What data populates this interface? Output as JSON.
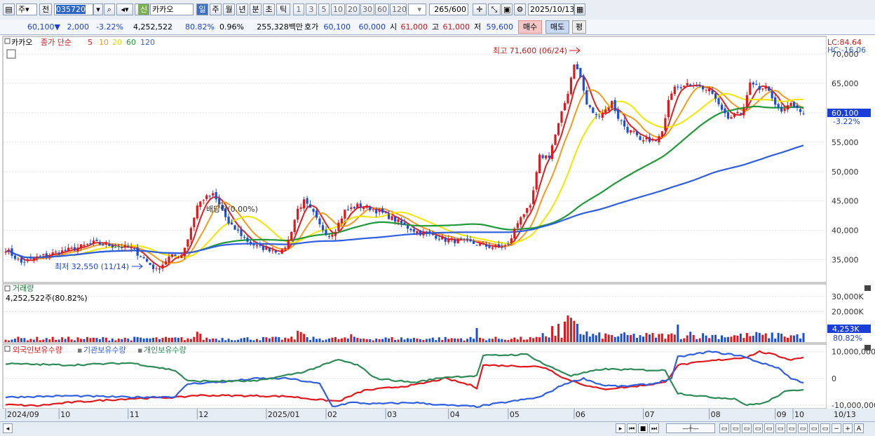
{
  "toolbar": {
    "period_mode": "주",
    "prev_label": "전",
    "code": "035720",
    "name_badge": "신",
    "stock_name": "카카오",
    "periods": [
      "일",
      "주",
      "월",
      "년",
      "분",
      "초",
      "틱"
    ],
    "active_period": "일",
    "intervals": [
      "1",
      "3",
      "5",
      "10",
      "20",
      "30",
      "60",
      "120"
    ],
    "count": "265",
    "count_total": "/600",
    "date": "2025/10/13"
  },
  "quote": {
    "price": "60,100",
    "arrow": "▼",
    "change": "2,000",
    "change_pct": "-3.22%",
    "volume": "4,252,522",
    "turnover_pct": "80.82%",
    "extra_pct": "0.96%",
    "amount": "255,328백만",
    "hoga_label": "호가",
    "ask": "60,100",
    "bid": "60,000",
    "open_label": "시",
    "open": "61,000",
    "high_label": "고",
    "high": "61,000",
    "low_label": "저",
    "low": "59,600",
    "buy_label": "매수",
    "sell_label": "매도",
    "eval_label": "평"
  },
  "legend": {
    "name": "카카오",
    "series_label": "종가 단순",
    "ma": [
      {
        "period": "5",
        "color": "#e02020"
      },
      {
        "period": "10",
        "color": "#f39a1e"
      },
      {
        "period": "20",
        "color": "#f2e600"
      },
      {
        "period": "60",
        "color": "#1f9a3a"
      },
      {
        "period": "120",
        "color": "#2f5fe0"
      }
    ],
    "lc_label": "LC:84.64",
    "hc_label": "HC:-16.06",
    "ex_label": "배당락(0.00%)"
  },
  "chart_data": [
    {
      "type": "candlestick",
      "title": "카카오",
      "x_ticks": [
        "2024/09",
        "10",
        "11",
        "12",
        "2025/01",
        "02",
        "03",
        "04",
        "05",
        "06",
        "07",
        "08",
        "09",
        "10",
        "10/13"
      ],
      "y_ticks": [
        "70,000",
        "65,000",
        "60,000",
        "55,000",
        "50,000",
        "45,000",
        "40,000",
        "35,000"
      ],
      "ylim": [
        31500,
        72500
      ],
      "current_price": "60,100",
      "current_change": "-3.22%",
      "annotations": [
        {
          "label": "최고 71,600 (06/24)",
          "value": 71600
        },
        {
          "label": "최저 32,550 (11/14)",
          "value": 32550
        }
      ],
      "close_anchors": [
        [
          0,
          36800
        ],
        [
          5,
          34500
        ],
        [
          10,
          35400
        ],
        [
          16,
          36200
        ],
        [
          22,
          36900
        ],
        [
          28,
          37900
        ],
        [
          34,
          37400
        ],
        [
          40,
          37000
        ],
        [
          44,
          35200
        ],
        [
          48,
          33200
        ],
        [
          52,
          35400
        ],
        [
          56,
          35900
        ],
        [
          58,
          38600
        ],
        [
          61,
          44200
        ],
        [
          63,
          45400
        ],
        [
          66,
          46000
        ],
        [
          69,
          43500
        ],
        [
          71,
          41000
        ],
        [
          74,
          39800
        ],
        [
          77,
          38200
        ],
        [
          80,
          37200
        ],
        [
          84,
          36800
        ],
        [
          88,
          36300
        ],
        [
          90,
          38300
        ],
        [
          93,
          43600
        ],
        [
          95,
          44900
        ],
        [
          98,
          42800
        ],
        [
          100,
          40800
        ],
        [
          103,
          39100
        ],
        [
          105,
          40200
        ],
        [
          108,
          43300
        ],
        [
          112,
          44200
        ],
        [
          116,
          43800
        ],
        [
          120,
          42900
        ],
        [
          124,
          41800
        ],
        [
          128,
          40500
        ],
        [
          132,
          39600
        ],
        [
          136,
          39200
        ],
        [
          140,
          38400
        ],
        [
          144,
          38200
        ],
        [
          148,
          37900
        ],
        [
          152,
          37400
        ],
        [
          156,
          37100
        ],
        [
          160,
          37500
        ],
        [
          162,
          40100
        ],
        [
          164,
          42500
        ],
        [
          167,
          43800
        ],
        [
          170,
          52500
        ],
        [
          173,
          52700
        ],
        [
          176,
          58000
        ],
        [
          179,
          63500
        ],
        [
          181,
          68500
        ],
        [
          183,
          66000
        ],
        [
          185,
          61400
        ],
        [
          188,
          59400
        ],
        [
          191,
          60500
        ],
        [
          193,
          61800
        ],
        [
          195,
          59200
        ],
        [
          198,
          57000
        ],
        [
          200,
          56600
        ],
        [
          202,
          55000
        ],
        [
          205,
          55500
        ],
        [
          207,
          55100
        ],
        [
          209,
          56500
        ],
        [
          211,
          62500
        ],
        [
          213,
          64800
        ],
        [
          216,
          64500
        ],
        [
          219,
          65000
        ],
        [
          222,
          64200
        ],
        [
          225,
          63300
        ],
        [
          227,
          61200
        ],
        [
          230,
          59400
        ],
        [
          233,
          59700
        ],
        [
          235,
          60500
        ],
        [
          237,
          65500
        ],
        [
          240,
          64200
        ],
        [
          242,
          64800
        ],
        [
          244,
          62400
        ],
        [
          246,
          60400
        ],
        [
          248,
          60800
        ],
        [
          250,
          62100
        ],
        [
          252,
          60900
        ],
        [
          254,
          60100
        ]
      ],
      "n_candles": 255
    },
    {
      "type": "bar",
      "title": "거래량",
      "value_label": "4,252,522주(80.82%)",
      "y_ticks": [
        "30,000K",
        "20,000K"
      ],
      "ylim": [
        0,
        36000
      ],
      "current": "4,253K",
      "current_pct": "80.82%",
      "spikes": [
        [
          61,
          6800
        ],
        [
          62,
          5500
        ],
        [
          93,
          7500
        ],
        [
          94,
          6600
        ],
        [
          95,
          5400
        ],
        [
          110,
          5200
        ],
        [
          150,
          9200
        ],
        [
          174,
          10500
        ],
        [
          176,
          12000
        ],
        [
          178,
          13500
        ],
        [
          179,
          17500
        ],
        [
          180,
          16000
        ],
        [
          181,
          14000
        ],
        [
          182,
          12000
        ],
        [
          185,
          7000
        ],
        [
          214,
          11500
        ],
        [
          218,
          6800
        ],
        [
          239,
          6600
        ],
        [
          246,
          6000
        ]
      ],
      "baseline": 2100
    },
    {
      "type": "line",
      "title": "외국인보유수량 · 기관보유수량 · 개인보유수량",
      "series": [
        {
          "name": "외국인보유수량",
          "color": "#e0181c"
        },
        {
          "name": "기관보유수량",
          "color": "#2f5fe0"
        },
        {
          "name": "개인보유수량",
          "color": "#2e8b57"
        }
      ],
      "y_ticks": [
        "10,000,000",
        "0",
        "-10,000,000"
      ],
      "ylim": [
        -10500000,
        11500000
      ],
      "foreign_anchors": [
        [
          0,
          -9800000
        ],
        [
          10,
          -10200000
        ],
        [
          20,
          -9000000
        ],
        [
          40,
          -7500000
        ],
        [
          56,
          -7000000
        ],
        [
          60,
          -6300000
        ],
        [
          80,
          -6500000
        ],
        [
          90,
          -6700000
        ],
        [
          100,
          -8000000
        ],
        [
          106,
          -8500000
        ],
        [
          114,
          -4500000
        ],
        [
          130,
          -2500000
        ],
        [
          140,
          0
        ],
        [
          148,
          -2500000
        ],
        [
          150,
          -3500000
        ],
        [
          152,
          5000000
        ],
        [
          168,
          4500000
        ],
        [
          172,
          4000000
        ],
        [
          178,
          0
        ],
        [
          186,
          -3000000
        ],
        [
          190,
          -4000000
        ],
        [
          200,
          -3000000
        ],
        [
          210,
          -1500000
        ],
        [
          214,
          5000000
        ],
        [
          224,
          6500000
        ],
        [
          236,
          8000000
        ],
        [
          240,
          10000000
        ],
        [
          244,
          9000000
        ],
        [
          250,
          7000000
        ],
        [
          254,
          8000000
        ]
      ],
      "inst_anchors": [
        [
          0,
          -7000000
        ],
        [
          20,
          -6500000
        ],
        [
          40,
          -7000000
        ],
        [
          54,
          -6800000
        ],
        [
          58,
          -2000000
        ],
        [
          70,
          -1200000
        ],
        [
          80,
          0
        ],
        [
          90,
          0
        ],
        [
          100,
          -2000000
        ],
        [
          104,
          -10500000
        ],
        [
          110,
          -9000000
        ],
        [
          118,
          -9500000
        ],
        [
          130,
          -9000000
        ],
        [
          140,
          -10000000
        ],
        [
          150,
          -10500000
        ],
        [
          170,
          -7000000
        ],
        [
          178,
          -2000000
        ],
        [
          184,
          0
        ],
        [
          190,
          -2500000
        ],
        [
          196,
          -3000000
        ],
        [
          206,
          -2000000
        ],
        [
          212,
          0
        ],
        [
          214,
          8000000
        ],
        [
          224,
          10000000
        ],
        [
          234,
          8500000
        ],
        [
          240,
          6000000
        ],
        [
          246,
          4000000
        ],
        [
          250,
          0
        ],
        [
          254,
          -1500000
        ]
      ],
      "indiv_anchors": [
        [
          0,
          5500000
        ],
        [
          20,
          5000000
        ],
        [
          40,
          5800000
        ],
        [
          54,
          3000000
        ],
        [
          58,
          -1000000
        ],
        [
          80,
          -1000000
        ],
        [
          95,
          2500000
        ],
        [
          106,
          7000000
        ],
        [
          112,
          5000000
        ],
        [
          118,
          0
        ],
        [
          130,
          -1500000
        ],
        [
          140,
          500000
        ],
        [
          150,
          1000000
        ],
        [
          152,
          8500000
        ],
        [
          166,
          9000000
        ],
        [
          172,
          5000000
        ],
        [
          180,
          1000000
        ],
        [
          190,
          3500000
        ],
        [
          210,
          3000000
        ],
        [
          214,
          -5500000
        ],
        [
          224,
          -7000000
        ],
        [
          232,
          -7500000
        ],
        [
          236,
          -10000000
        ],
        [
          242,
          -9000000
        ],
        [
          248,
          -5000000
        ],
        [
          254,
          -4000000
        ]
      ]
    }
  ],
  "volume_panel": {
    "title": "거래량",
    "value": "4,252,522주(80.82%)"
  },
  "holdings_panel": {
    "legend": [
      "외국인보유수량",
      "기관보유수량",
      "개인보유수량"
    ]
  }
}
